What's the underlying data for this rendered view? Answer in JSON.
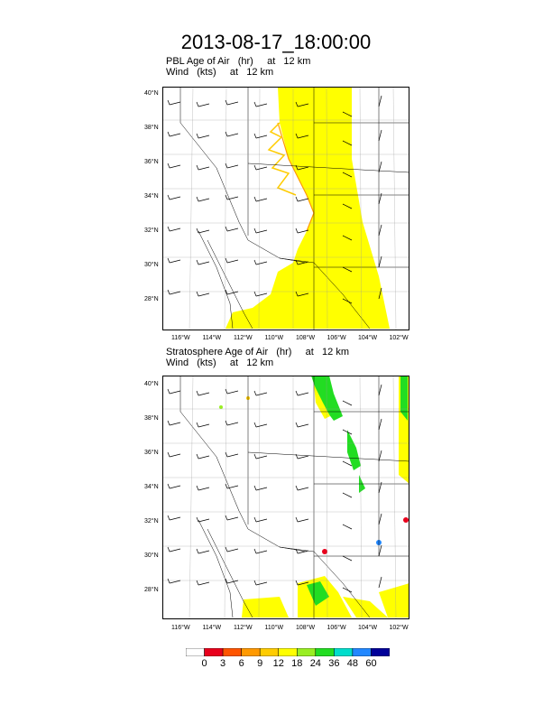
{
  "title": "2013-08-17_18:00:00",
  "panels": [
    {
      "field_label": "PBL Age of Air   (hr)     at   12 km",
      "wind_label": "Wind   (kts)     at   12 km"
    },
    {
      "field_label": "Stratosphere Age of Air   (hr)     at   12 km",
      "wind_label": "Wind   (kts)     at   12 km"
    }
  ],
  "lat_ticks": [
    "40°N",
    "38°N",
    "36°N",
    "34°N",
    "32°N",
    "30°N",
    "28°N"
  ],
  "lon_ticks": [
    "116°W",
    "114°W",
    "112°W",
    "110°W",
    "108°W",
    "106°W",
    "104°W",
    "102°W"
  ],
  "colorbar": {
    "labels": [
      "0",
      "3",
      "6",
      "9",
      "12",
      "18",
      "24",
      "36",
      "48",
      "60"
    ],
    "colors": [
      "#ffffff",
      "#e8001c",
      "#ff5500",
      "#ff9900",
      "#ffcc00",
      "#ffff00",
      "#99ee22",
      "#22dd22",
      "#00ddcc",
      "#2288ff",
      "#000099"
    ]
  }
}
